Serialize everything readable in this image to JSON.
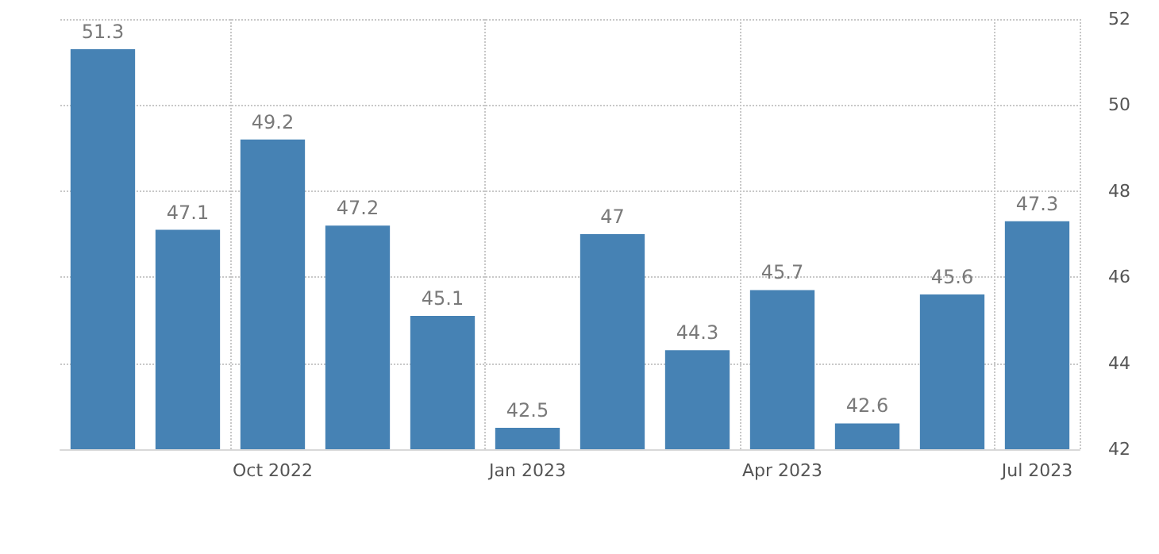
{
  "chart_data": {
    "type": "bar",
    "categories": [
      null,
      null,
      "Oct 2022",
      null,
      null,
      "Jan 2023",
      null,
      null,
      "Apr 2023",
      null,
      null,
      "Jul 2023"
    ],
    "values": [
      51.3,
      47.1,
      49.2,
      47.2,
      45.1,
      42.5,
      47,
      44.3,
      45.7,
      42.6,
      45.6,
      47.3
    ],
    "color": "#4682b4",
    "ylim": [
      42,
      52
    ],
    "yticks": [
      42,
      44,
      46,
      48,
      50,
      52
    ],
    "grid": true,
    "data_labels": true
  }
}
